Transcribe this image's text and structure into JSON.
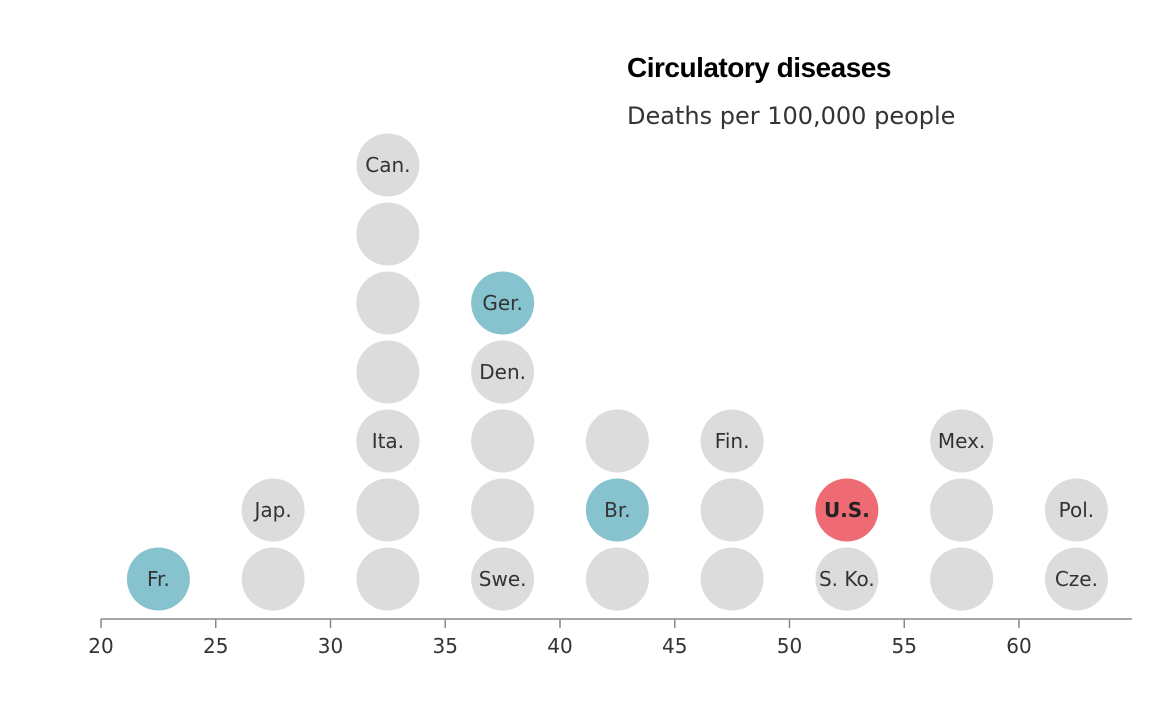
{
  "chart_data": {
    "type": "scatter",
    "title": "Circulatory diseases",
    "subtitle": "Deaths per 100,000 people",
    "xlabel": "",
    "ylabel": "",
    "xlim": [
      20,
      65
    ],
    "xticks": [
      20,
      25,
      30,
      35,
      40,
      45,
      50,
      55,
      60
    ],
    "colors": {
      "default": "#dcdcdc",
      "highlight": "#86c3cf",
      "us": "#ef6b73",
      "axis": "#888888"
    },
    "bins": [
      {
        "x": 22.5,
        "dots": [
          {
            "label": "Fr.",
            "group": "highlight"
          }
        ]
      },
      {
        "x": 27.5,
        "dots": [
          {
            "label": "",
            "group": "default"
          },
          {
            "label": "Jap.",
            "group": "default"
          }
        ]
      },
      {
        "x": 32.5,
        "dots": [
          {
            "label": "",
            "group": "default"
          },
          {
            "label": "",
            "group": "default"
          },
          {
            "label": "Ita.",
            "group": "default"
          },
          {
            "label": "",
            "group": "default"
          },
          {
            "label": "",
            "group": "default"
          },
          {
            "label": "",
            "group": "default"
          },
          {
            "label": "Can.",
            "group": "default"
          }
        ]
      },
      {
        "x": 37.5,
        "dots": [
          {
            "label": "Swe.",
            "group": "default"
          },
          {
            "label": "",
            "group": "default"
          },
          {
            "label": "",
            "group": "default"
          },
          {
            "label": "Den.",
            "group": "default"
          },
          {
            "label": "Ger.",
            "group": "highlight"
          }
        ]
      },
      {
        "x": 42.5,
        "dots": [
          {
            "label": "",
            "group": "default"
          },
          {
            "label": "Br.",
            "group": "highlight"
          },
          {
            "label": "",
            "group": "default"
          }
        ]
      },
      {
        "x": 47.5,
        "dots": [
          {
            "label": "",
            "group": "default"
          },
          {
            "label": "",
            "group": "default"
          },
          {
            "label": "Fin.",
            "group": "default"
          }
        ]
      },
      {
        "x": 52.5,
        "dots": [
          {
            "label": "S. Ko.",
            "group": "default"
          },
          {
            "label": "U.S.",
            "group": "us"
          }
        ]
      },
      {
        "x": 57.5,
        "dots": [
          {
            "label": "",
            "group": "default"
          },
          {
            "label": "",
            "group": "default"
          },
          {
            "label": "Mex.",
            "group": "default"
          }
        ]
      },
      {
        "x": 62.5,
        "dots": [
          {
            "label": "Cze.",
            "group": "default"
          },
          {
            "label": "Pol.",
            "group": "default"
          }
        ]
      }
    ]
  }
}
